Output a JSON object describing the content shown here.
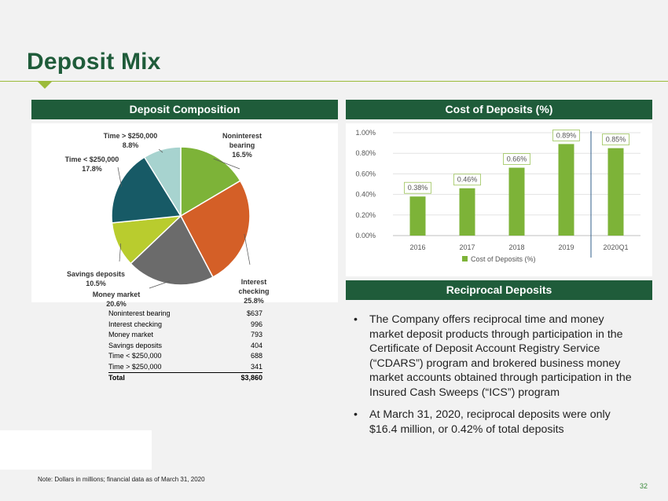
{
  "slide": {
    "title": "Deposit Mix",
    "page_number": "32",
    "note": "Note: Dollars in millions; financial data as of March 31, 2020"
  },
  "sections": {
    "composition": "Deposit Composition",
    "cost": "Cost of Deposits (%)",
    "reciprocal": "Reciprocal Deposits"
  },
  "table": {
    "rows": [
      {
        "label": "Noninterest bearing",
        "value": "$637"
      },
      {
        "label": "Interest checking",
        "value": "996"
      },
      {
        "label": "Money market",
        "value": "793"
      },
      {
        "label": "Savings deposits",
        "value": "404"
      },
      {
        "label": "Time < $250,000",
        "value": "688"
      },
      {
        "label": "Time > $250,000",
        "value": "341"
      }
    ],
    "total_label": "Total",
    "total_value": "$3,860"
  },
  "bullets": [
    "The Company offers reciprocal time and money market deposit products through participation in the Certificate of Deposit Account Registry Service (“CDARS”) program and brokered business money market accounts obtained through participation in the Insured Cash Sweeps (“ICS”) program",
    "At March 31, 2020, reciprocal deposits were only $16.4 million, or 0.42% of total deposits"
  ],
  "chart_data": [
    {
      "type": "pie",
      "slices": [
        {
          "label": [
            "Noninterest",
            "bearing"
          ],
          "value": 16.5,
          "pct_label": "16.5%",
          "color": "#7db338"
        },
        {
          "label": [
            "Interest",
            "checking"
          ],
          "value": 25.8,
          "pct_label": "25.8%",
          "color": "#d45f27"
        },
        {
          "label": [
            "Money market"
          ],
          "value": 20.6,
          "pct_label": "20.6%",
          "color": "#6b6b6b"
        },
        {
          "label": [
            "Savings deposits"
          ],
          "value": 10.5,
          "pct_label": "10.5%",
          "color": "#b9cc2e"
        },
        {
          "label": [
            "Time < $250,000"
          ],
          "value": 17.8,
          "pct_label": "17.8%",
          "color": "#175a66"
        },
        {
          "label": [
            "Time > $250,000"
          ],
          "value": 8.8,
          "pct_label": "8.8%",
          "color": "#a7d3cf"
        }
      ]
    },
    {
      "type": "bar",
      "categories": [
        "2016",
        "2017",
        "2018",
        "2019",
        "2020Q1"
      ],
      "series": [
        {
          "name": "Cost of Deposits (%)",
          "values": [
            0.38,
            0.46,
            0.66,
            0.89,
            0.85
          ],
          "color": "#7db338"
        }
      ],
      "data_labels": [
        "0.38%",
        "0.46%",
        "0.66%",
        "0.89%",
        "0.85%"
      ],
      "yticks": [
        "0.00%",
        "0.20%",
        "0.40%",
        "0.60%",
        "0.80%",
        "1.00%"
      ],
      "ylim": [
        0,
        1.0
      ],
      "legend": "bottom",
      "divider_after": "2019"
    }
  ]
}
